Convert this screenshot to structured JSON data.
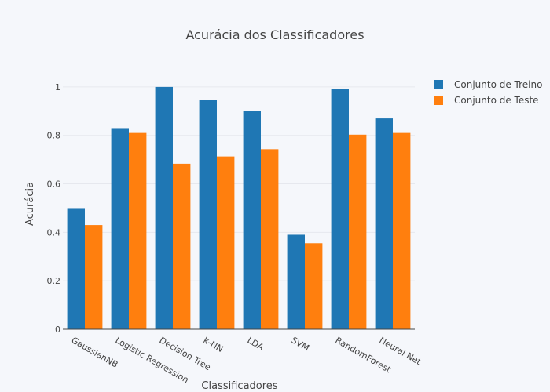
{
  "chart_data": {
    "type": "bar",
    "title": "Acurácia dos Classificadores",
    "xlabel": "Classificadores",
    "ylabel": "Acurácia",
    "categories": [
      "GaussianNB",
      "Logistic Regression",
      "Decision Tree",
      "k-NN",
      "LDA",
      "SVM",
      "RandomForest",
      "Neural Net"
    ],
    "series": [
      {
        "name": "Conjunto de Treino",
        "color": "#1f77b4",
        "values": [
          0.5,
          0.83,
          1.0,
          0.947,
          0.9,
          0.39,
          0.99,
          0.87
        ]
      },
      {
        "name": "Conjunto de Teste",
        "color": "#ff7f0e",
        "values": [
          0.43,
          0.81,
          0.683,
          0.713,
          0.743,
          0.355,
          0.803,
          0.81
        ]
      }
    ],
    "ylim": [
      0,
      1.1
    ],
    "yticks": [
      0,
      0.2,
      0.4,
      0.6,
      0.8,
      1
    ],
    "ytick_labels": [
      "0",
      "0.2",
      "0.4",
      "0.6",
      "0.8",
      "1"
    ],
    "grid": true,
    "legend_position": "top-right",
    "background": "#f5f7fb"
  }
}
